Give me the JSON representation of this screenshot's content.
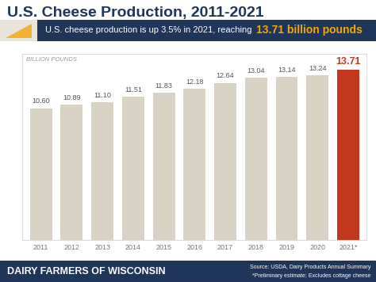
{
  "chart_data": {
    "type": "bar",
    "title": "U.S. Cheese Production, 2011-2021",
    "subtitle": "U.S. cheese production is up 3.5% in 2021, reaching",
    "highlight": "13.71 billion pounds",
    "ylabel": "BILLION POUNDS",
    "categories": [
      "2011",
      "2012",
      "2013",
      "2014",
      "2015",
      "2016",
      "2017",
      "2018",
      "2019",
      "2020",
      "2021*"
    ],
    "values": [
      10.6,
      10.89,
      11.1,
      11.51,
      11.83,
      12.18,
      12.64,
      13.04,
      13.14,
      13.24,
      13.71
    ],
    "value_labels": [
      "10.60",
      "10.89",
      "11.10",
      "11.51",
      "11.83",
      "12.18",
      "12.64",
      "13.04",
      "13.14",
      "13.24",
      "13.71"
    ],
    "colors": [
      "#d9d3c6",
      "#d9d3c6",
      "#d9d3c6",
      "#d9d3c6",
      "#d9d3c6",
      "#d9d3c6",
      "#d9d3c6",
      "#d9d3c6",
      "#d9d3c6",
      "#d9d3c6",
      "#c4371f"
    ],
    "ylim": [
      0,
      15
    ],
    "yticks": [],
    "data_labels": true,
    "tick_labels": "x",
    "grid": false,
    "footer": {
      "brand": "DAIRY FARMERS OF WISCONSIN",
      "source": "Source: USDA, Dairy Products Annual Summary",
      "note": "*Preliminary estimate; Excludes cottage cheese"
    }
  }
}
